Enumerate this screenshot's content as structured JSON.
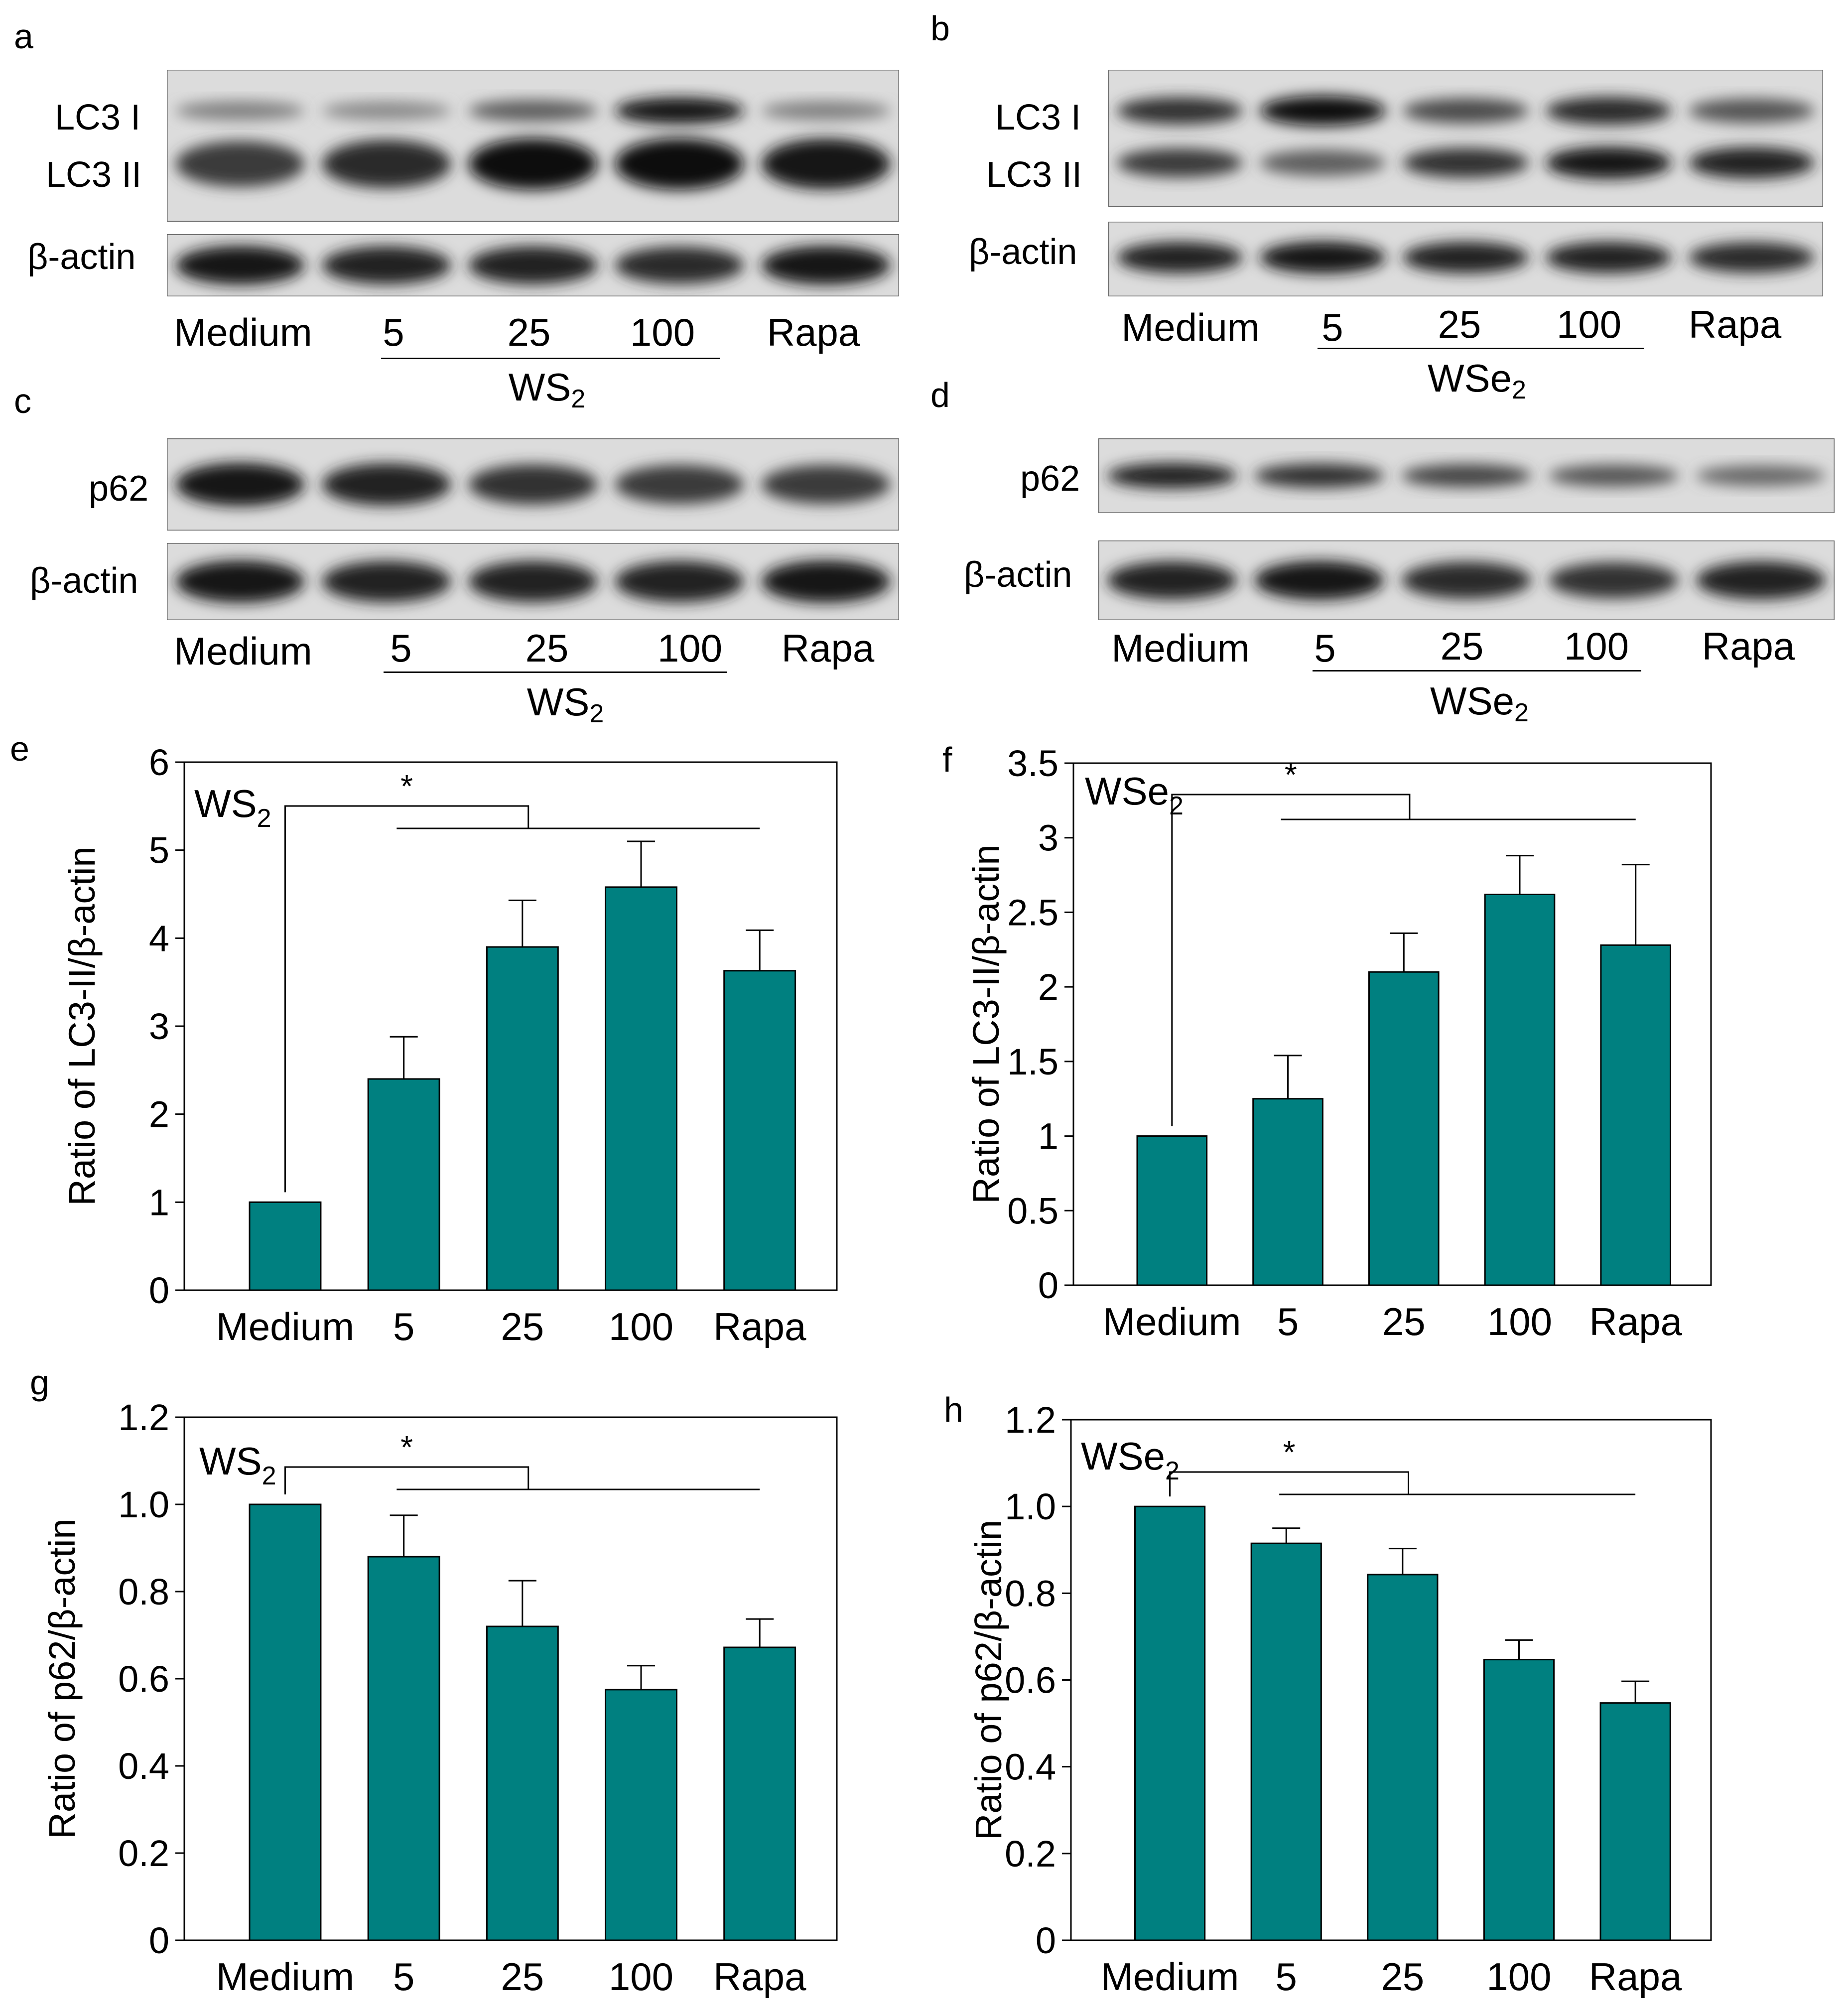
{
  "panels": {
    "a": {
      "label": "a",
      "rows": [
        {
          "name": "LC3 I",
          "strips": "lc3"
        },
        {
          "name": "LC3 II",
          "strips": "lc3"
        },
        {
          "name": "β-actin",
          "strips": "actin"
        }
      ],
      "lanes": [
        "Medium",
        "5",
        "25",
        "100",
        "Rapa"
      ],
      "group": {
        "base": "WS",
        "sub": "2"
      },
      "lc3i": [
        0.35,
        0.3,
        0.55,
        0.95,
        0.35
      ],
      "lc3ii": [
        0.75,
        0.85,
        1.0,
        1.0,
        0.95
      ],
      "actin": [
        0.95,
        0.9,
        0.9,
        0.85,
        0.95
      ]
    },
    "b": {
      "label": "b",
      "rows": [
        {
          "name": "LC3 I"
        },
        {
          "name": "LC3 II"
        },
        {
          "name": "β-actin"
        }
      ],
      "lanes": [
        "Medium",
        "5",
        "25",
        "100",
        "Rapa"
      ],
      "group": {
        "base": "WSe",
        "sub": "2"
      },
      "lc3i": [
        0.8,
        1.0,
        0.65,
        0.85,
        0.6
      ],
      "lc3ii": [
        0.75,
        0.55,
        0.8,
        0.95,
        0.9
      ],
      "actin": [
        0.9,
        0.95,
        0.9,
        0.9,
        0.85
      ]
    },
    "c": {
      "label": "c",
      "rows": [
        {
          "name": "p62"
        },
        {
          "name": "β-actin"
        }
      ],
      "lanes": [
        "Medium",
        "5",
        "25",
        "100",
        "Rapa"
      ],
      "group": {
        "base": "WS",
        "sub": "2"
      },
      "p62": [
        0.95,
        0.9,
        0.8,
        0.75,
        0.75
      ],
      "actin": [
        0.95,
        0.9,
        0.9,
        0.9,
        0.95
      ]
    },
    "d": {
      "label": "d",
      "rows": [
        {
          "name": "p62"
        },
        {
          "name": "β-actin"
        }
      ],
      "lanes": [
        "Medium",
        "5",
        "25",
        "100",
        "Rapa"
      ],
      "group": {
        "base": "WSe",
        "sub": "2"
      },
      "p62": [
        0.9,
        0.8,
        0.7,
        0.6,
        0.5
      ],
      "actin": [
        0.9,
        0.95,
        0.85,
        0.8,
        0.9
      ]
    }
  },
  "chart_data": [
    {
      "panel": "e",
      "type": "bar",
      "inset_title": {
        "base": "WS",
        "sub": "2"
      },
      "categories": [
        "Medium",
        "5",
        "25",
        "100",
        "Rapa"
      ],
      "values": [
        1.0,
        2.4,
        3.9,
        4.58,
        3.63
      ],
      "errors": [
        0,
        0.48,
        0.53,
        0.52,
        0.46
      ],
      "ylabel": "Ratio of LC3-II/β-actin",
      "ylim": [
        0,
        6
      ],
      "yticks": [
        "0",
        "1",
        "2",
        "3",
        "4",
        "5",
        "6"
      ],
      "yticks_values": [
        0,
        1,
        2,
        3,
        4,
        5,
        6
      ],
      "significance": "*",
      "bar_color": "#008080",
      "grid": false
    },
    {
      "panel": "f",
      "type": "bar",
      "inset_title": {
        "base": "WSe",
        "sub": "2"
      },
      "categories": [
        "Medium",
        "5",
        "25",
        "100",
        "Rapa"
      ],
      "values": [
        1.0,
        1.25,
        2.1,
        2.62,
        2.28
      ],
      "errors": [
        0,
        0.29,
        0.26,
        0.26,
        0.54
      ],
      "ylabel": "Ratio of LC3-II/β-actin",
      "ylim": [
        0,
        3.5
      ],
      "yticks": [
        "0",
        "0.5",
        "1",
        "1.5",
        "2",
        "2.5",
        "3",
        "3.5"
      ],
      "yticks_values": [
        0,
        0.5,
        1,
        1.5,
        2,
        2.5,
        3,
        3.5
      ],
      "significance": "*",
      "bar_color": "#008080",
      "grid": false
    },
    {
      "panel": "g",
      "type": "bar",
      "inset_title": {
        "base": "WS",
        "sub": "2"
      },
      "categories": [
        "Medium",
        "5",
        "25",
        "100",
        "Rapa"
      ],
      "values": [
        1.0,
        0.88,
        0.72,
        0.575,
        0.672
      ],
      "errors": [
        0,
        0.095,
        0.105,
        0.055,
        0.065
      ],
      "ylabel": "Ratio of p62/β-actin",
      "ylim": [
        0,
        1.2
      ],
      "yticks": [
        "0",
        "0.2",
        "0.4",
        "0.6",
        "0.8",
        "1.0",
        "1.2"
      ],
      "yticks_values": [
        0,
        0.2,
        0.4,
        0.6,
        0.8,
        1.0,
        1.2
      ],
      "significance": "*",
      "bar_color": "#008080",
      "grid": false
    },
    {
      "panel": "h",
      "type": "bar",
      "inset_title": {
        "base": "WSe",
        "sub": "2"
      },
      "categories": [
        "Medium",
        "5",
        "25",
        "100",
        "Rapa"
      ],
      "values": [
        1.0,
        0.915,
        0.843,
        0.647,
        0.547
      ],
      "errors": [
        0,
        0.035,
        0.06,
        0.045,
        0.05
      ],
      "ylabel": "Ratio of p62/β-actin",
      "ylim": [
        0,
        1.2
      ],
      "yticks": [
        "0",
        "0.2",
        "0.4",
        "0.6",
        "0.8",
        "1.0",
        "1.2"
      ],
      "yticks_values": [
        0,
        0.2,
        0.4,
        0.6,
        0.8,
        1.0,
        1.2
      ],
      "significance": "*",
      "bar_color": "#008080",
      "grid": false
    }
  ]
}
